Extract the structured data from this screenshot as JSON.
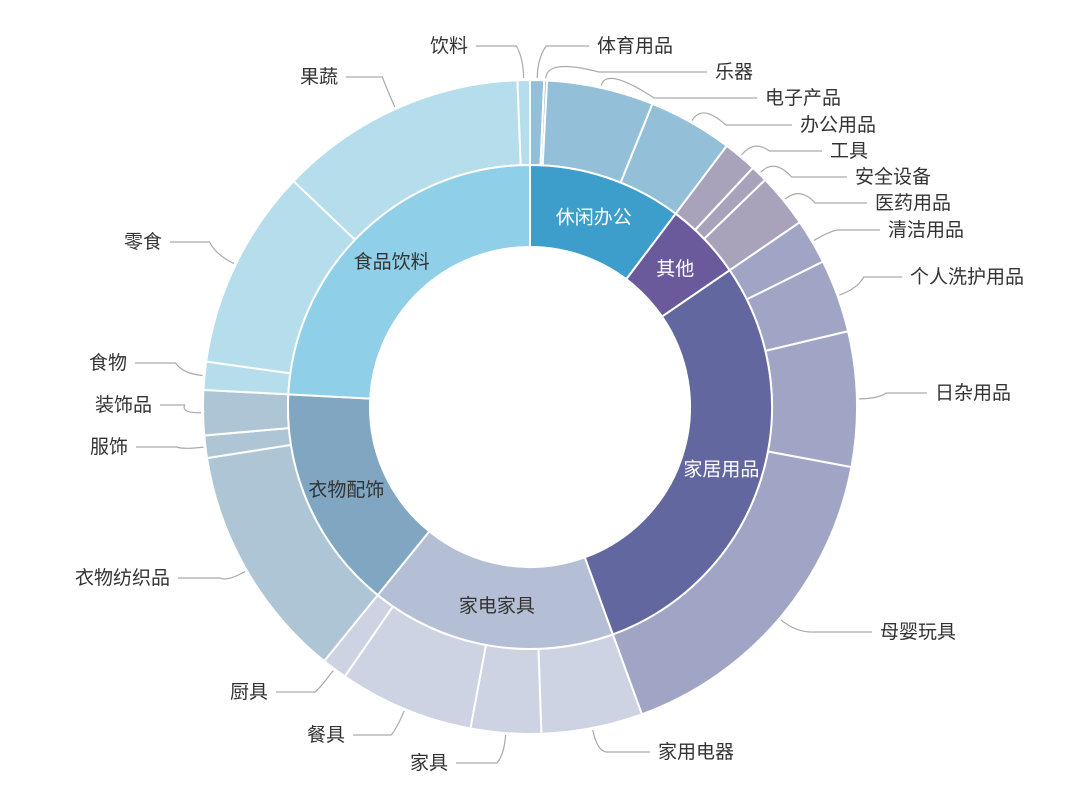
{
  "chart_data": {
    "type": "sunburst",
    "title": "",
    "note_values": "relative shares estimated from arc sizes; no values printed",
    "inner": [
      {
        "name": "休闲办公",
        "color": "#3d9ecb",
        "text_color": "#ffffff"
      },
      {
        "name": "其他",
        "color": "#6b5a9b",
        "text_color": "#ffffff"
      },
      {
        "name": "家居用品",
        "color": "#63679f",
        "text_color": "#ffffff"
      },
      {
        "name": "家电家具",
        "color": "#b4bed4",
        "text_color": "#333333"
      },
      {
        "name": "衣物配饰",
        "color": "#80a6c1",
        "text_color": "#333333"
      },
      {
        "name": "食品饮料",
        "color": "#8fcfe7",
        "text_color": "#333333"
      }
    ],
    "outer": [
      {
        "name": "体育用品",
        "parent": "休闲办公",
        "value": 2.5,
        "color": "#93bfd8"
      },
      {
        "name": "乐器",
        "parent": "休闲办公",
        "value": 0.5,
        "color": "#93bfd8"
      },
      {
        "name": "电子产品",
        "parent": "休闲办公",
        "value": 19,
        "color": "#93bfd8"
      },
      {
        "name": "办公用品",
        "parent": "休闲办公",
        "value": 15,
        "color": "#93bfd8"
      },
      {
        "name": "工具",
        "parent": "其他",
        "value": 6,
        "color": "#a9a2bb"
      },
      {
        "name": "安全设备",
        "parent": "其他",
        "value": 3,
        "color": "#a9a2bb"
      },
      {
        "name": "医药用品",
        "parent": "其他",
        "value": 9.6,
        "color": "#a9a2bb"
      },
      {
        "name": "清洁用品",
        "parent": "家居用品",
        "value": 8,
        "color": "#a1a5c5"
      },
      {
        "name": "个人洗护用品",
        "parent": "家居用品",
        "value": 13,
        "color": "#a1a5c5"
      },
      {
        "name": "日杂用品",
        "parent": "家居用品",
        "value": 24,
        "color": "#a1a5c5"
      },
      {
        "name": "母婴玩具",
        "parent": "家居用品",
        "value": 59.4,
        "color": "#a1a5c5"
      },
      {
        "name": "家用电器",
        "parent": "家电家具",
        "value": 18,
        "color": "#cdd3e3"
      },
      {
        "name": "家具",
        "parent": "家电家具",
        "value": 12.5,
        "color": "#cdd3e3"
      },
      {
        "name": "餐具",
        "parent": "家电家具",
        "value": 24,
        "color": "#cdd3e3"
      },
      {
        "name": "厨具",
        "parent": "家电家具",
        "value": 4.5,
        "color": "#cdd3e3"
      },
      {
        "name": "衣物纺织品",
        "parent": "衣物配饰",
        "value": 42,
        "color": "#aec5d5"
      },
      {
        "name": "服饰",
        "parent": "衣物配饰",
        "value": 4,
        "color": "#aec5d5"
      },
      {
        "name": "装饰品",
        "parent": "衣物配饰",
        "value": 8,
        "color": "#aec5d5"
      },
      {
        "name": "食物",
        "parent": "食品饮料",
        "value": 5,
        "color": "#b6ddeb"
      },
      {
        "name": "零食",
        "parent": "食品饮料",
        "value": 35.7,
        "color": "#b6ddeb"
      },
      {
        "name": "果蔬",
        "parent": "食品饮料",
        "value": 44.1,
        "color": "#b6ddeb"
      },
      {
        "name": "饮料",
        "parent": "食品饮料",
        "value": 2.2,
        "color": "#b6ddeb"
      }
    ],
    "start": "top",
    "direction": "clockwise",
    "legend": "none"
  }
}
